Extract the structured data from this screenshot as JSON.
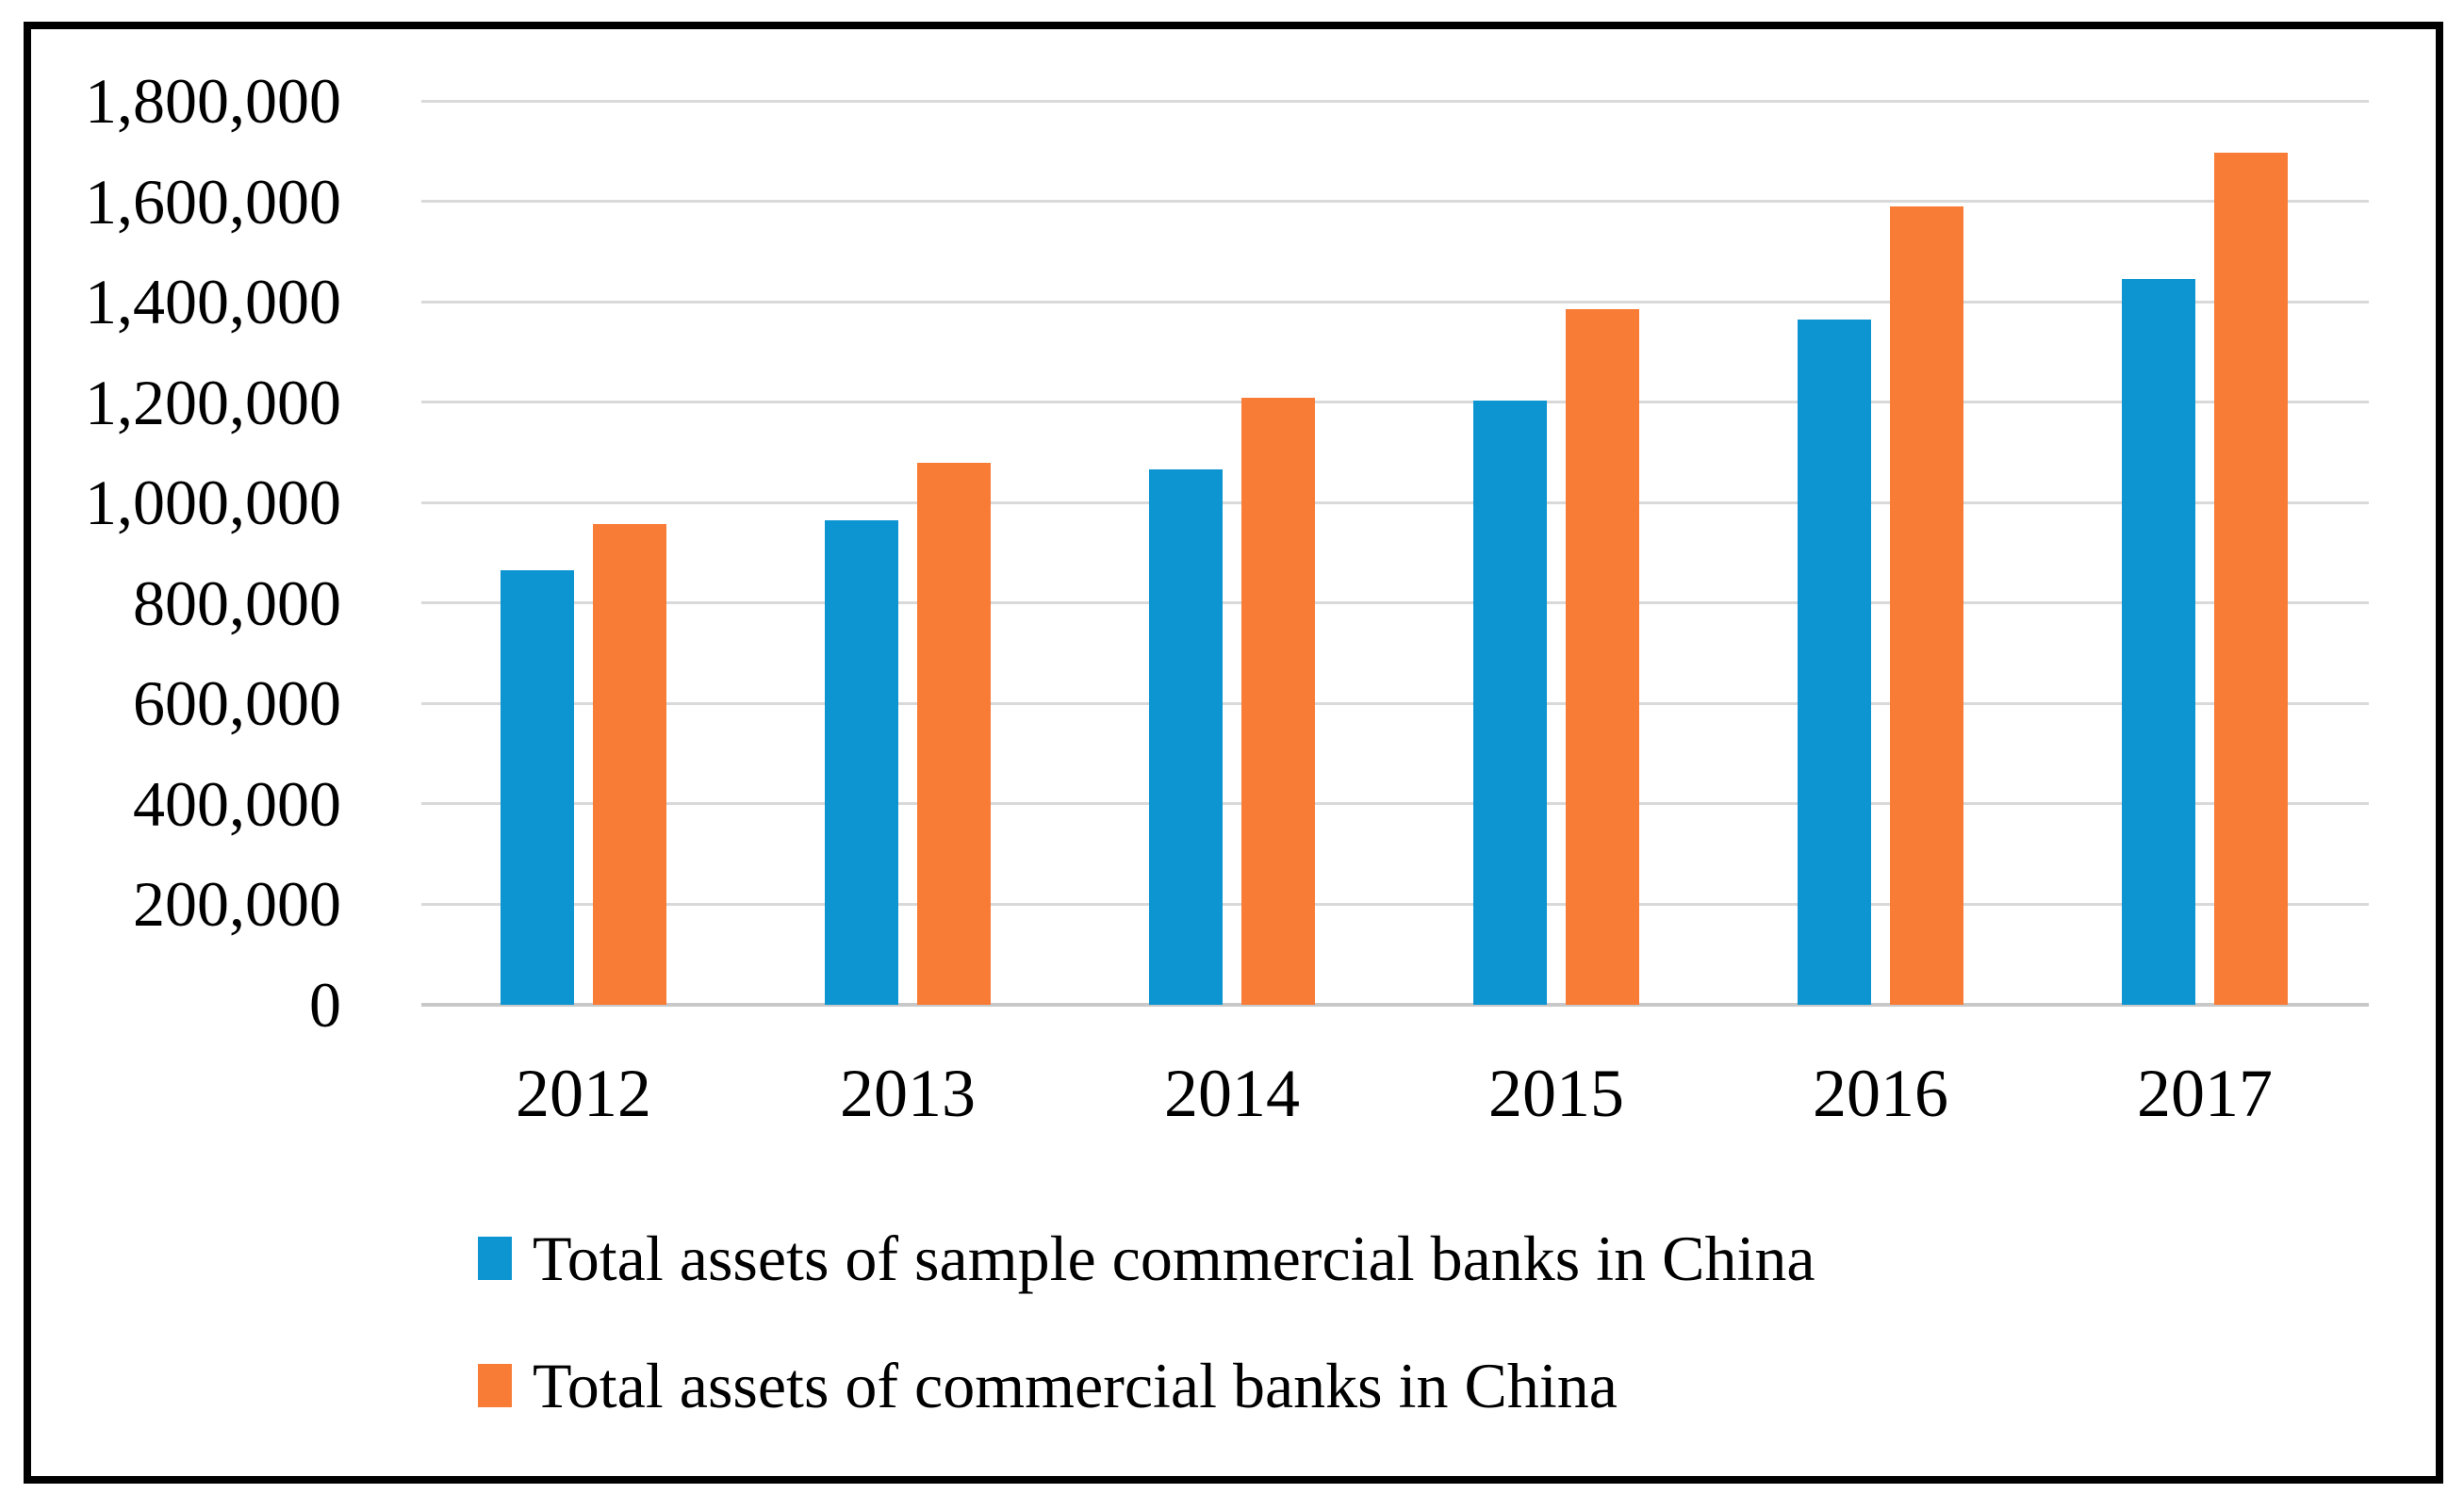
{
  "figure": {
    "background": "#ffffff",
    "frame_color": "#000000"
  },
  "chart_data": {
    "type": "bar",
    "title": "",
    "xlabel": "",
    "ylabel": "",
    "categories": [
      "2012",
      "2013",
      "2014",
      "2015",
      "2016",
      "2017"
    ],
    "series": [
      {
        "name": "Total assets of sample commercial banks in China",
        "color": "#0c95d0",
        "values": [
          865000,
          965000,
          1066000,
          1204000,
          1364000,
          1446000
        ]
      },
      {
        "name": "Total assets of commercial banks in China",
        "color": "#f97c36",
        "values": [
          957000,
          1080000,
          1209000,
          1385000,
          1590000,
          1696000
        ]
      }
    ],
    "ylim": [
      0,
      1800000
    ],
    "ytick_step": 200000,
    "ytick_labels": [
      "0",
      "200,000",
      "400,000",
      "600,000",
      "800,000",
      "1,000,000",
      "1,200,000",
      "1,400,000",
      "1,600,000",
      "1,800,000"
    ],
    "grid": true,
    "gridline_color": "#d9d9d9",
    "axis_line_color": "#c8c8c8",
    "legend_position": "bottom-left"
  }
}
